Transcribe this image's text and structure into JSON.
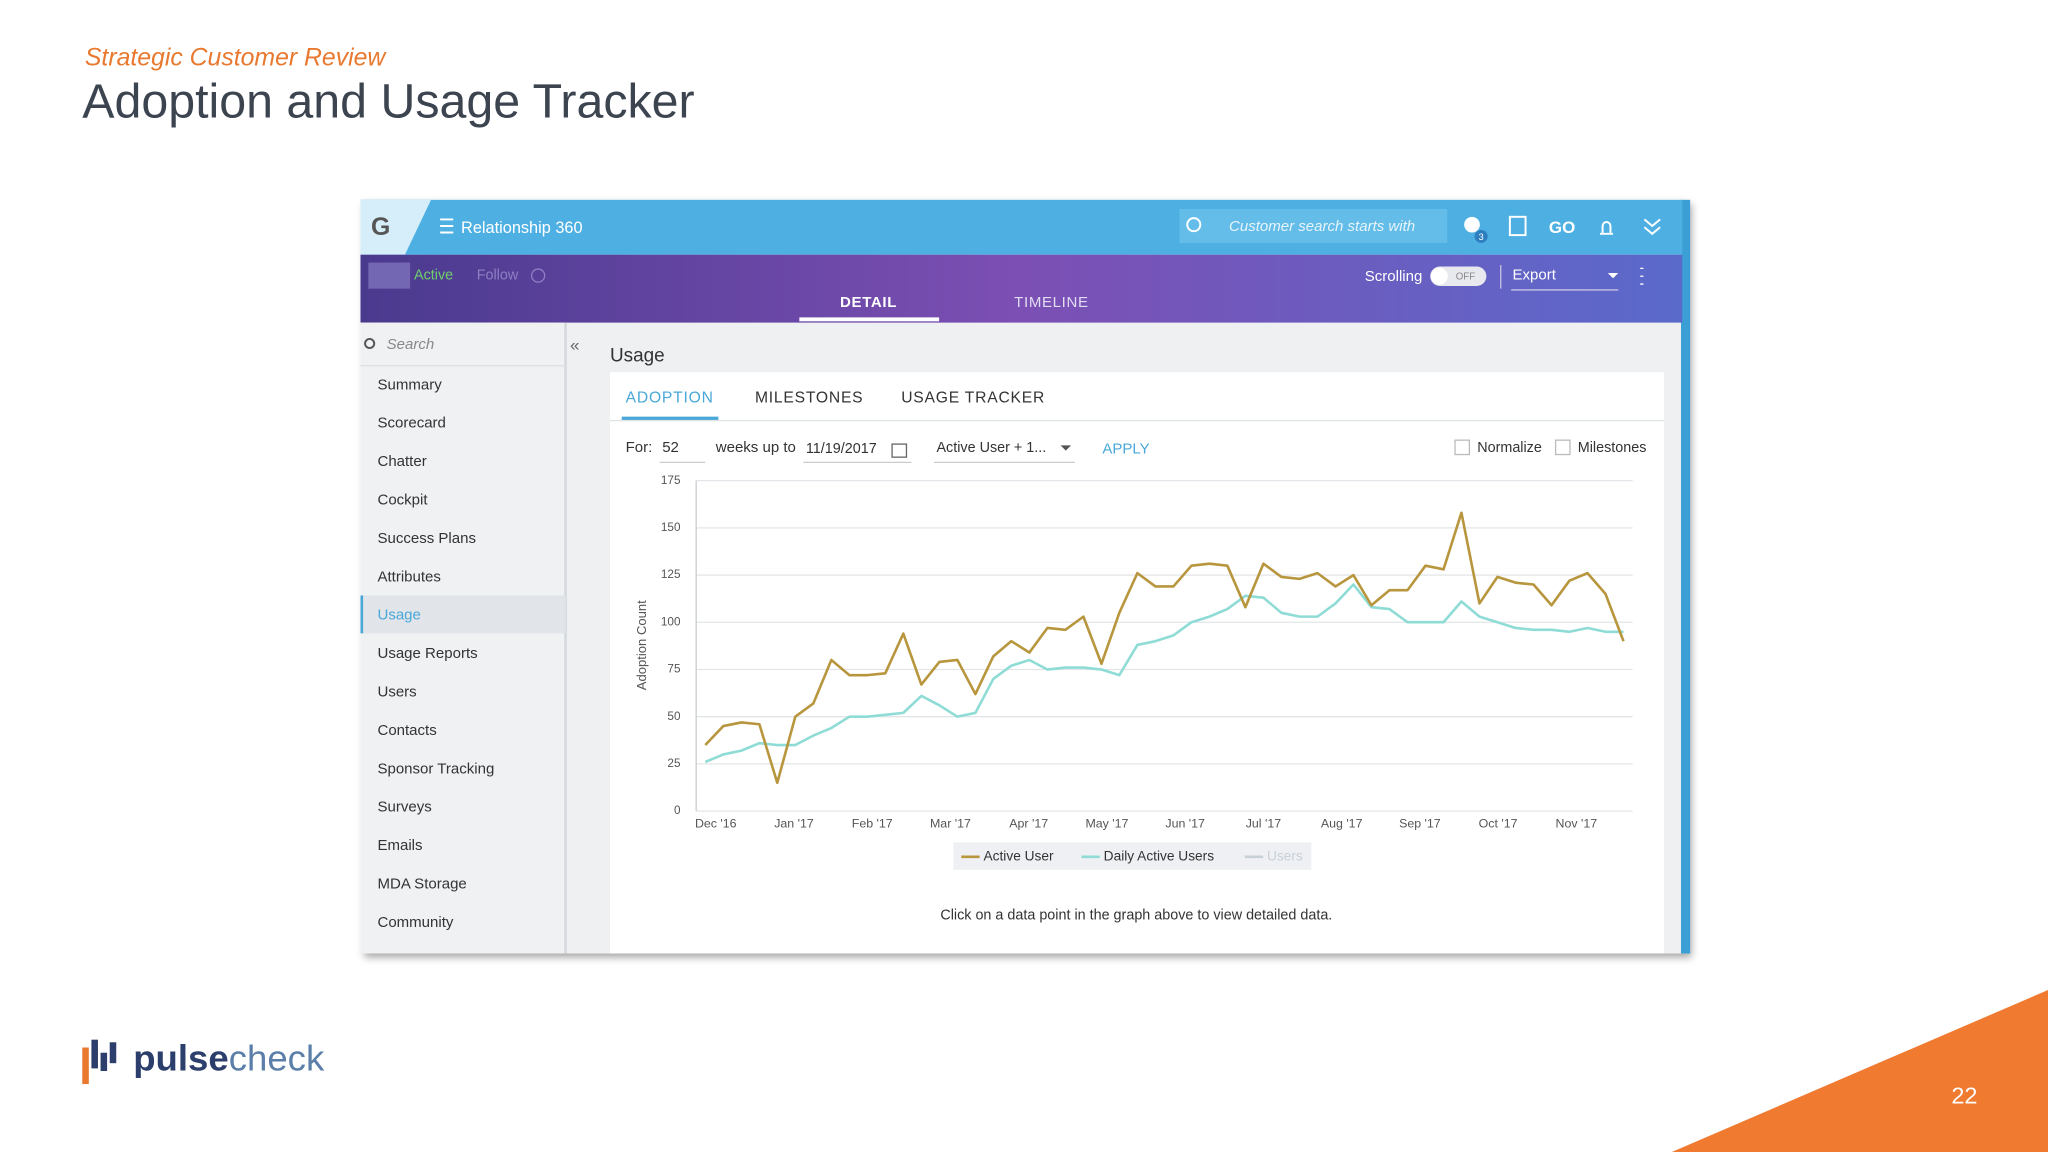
{
  "slide": {
    "kicker": "Strategic Customer Review",
    "title": "Adoption and Usage Tracker",
    "page_number": 22,
    "logo": {
      "part1": "pulse",
      "part2": "check"
    }
  },
  "app": {
    "brand": "G",
    "nav_title": "Relationship 360",
    "search_placeholder": "Customer search starts with",
    "badge": 3,
    "go": "GO",
    "status": "Active",
    "follow": "Follow",
    "scrolling": "Scrolling",
    "toggle": "OFF",
    "export": "Export",
    "tabs": [
      "DETAIL",
      "TIMELINE"
    ],
    "sidebar_search": "Search",
    "sidebar": [
      "Summary",
      "Scorecard",
      "Chatter",
      "Cockpit",
      "Success Plans",
      "Attributes",
      "Usage",
      "Usage Reports",
      "Users",
      "Contacts",
      "Sponsor Tracking",
      "Surveys",
      "Emails",
      "MDA Storage",
      "Community"
    ],
    "section": "Usage",
    "subtabs": [
      "ADOPTION",
      "MILESTONES",
      "USAGE TRACKER"
    ],
    "filters": {
      "for": "For:",
      "weeks": 52,
      "weeks_up_to": "weeks up to",
      "date": "11/19/2017",
      "measure": "Active User + 1...",
      "apply": "APPLY",
      "normalize": "Normalize",
      "milestones": "Milestones"
    },
    "footnote": "Click on a data point in the graph above to view detailed data."
  },
  "chart": {
    "type": "line",
    "y_label": "Adoption Count",
    "xticks": [
      "Dec '16",
      "Jan '17",
      "Feb '17",
      "Mar '17",
      "Apr '17",
      "May '17",
      "Jun '17",
      "Jul '17",
      "Aug '17",
      "Sep '17",
      "Oct '17",
      "Nov '17"
    ],
    "ylim": [
      0,
      175
    ],
    "yticks": [
      0,
      25,
      50,
      75,
      100,
      125,
      150,
      175
    ],
    "grid": true,
    "series": [
      {
        "name": "Active User",
        "color": "#b8963e",
        "values": [
          35,
          45,
          47,
          46,
          15,
          50,
          57,
          80,
          72,
          72,
          73,
          94,
          67,
          79,
          80,
          62,
          82,
          90,
          84,
          97,
          96,
          103,
          78,
          105,
          126,
          119,
          119,
          130,
          131,
          130,
          108,
          131,
          124,
          123,
          126,
          119,
          125,
          109,
          117,
          117,
          130,
          128,
          158,
          110,
          124,
          121,
          120,
          109,
          122,
          126,
          115,
          90
        ]
      },
      {
        "name": "Daily Active Users",
        "color": "#8fdcd6",
        "values": [
          26,
          30,
          32,
          36,
          35,
          35,
          40,
          44,
          50,
          50,
          51,
          52,
          61,
          56,
          50,
          52,
          70,
          77,
          80,
          75,
          76,
          76,
          75,
          72,
          88,
          90,
          93,
          100,
          103,
          107,
          114,
          113,
          105,
          103,
          103,
          110,
          120,
          108,
          107,
          100,
          100,
          100,
          111,
          103,
          100,
          97,
          96,
          96,
          95,
          97,
          95,
          95
        ]
      }
    ],
    "inactive_series": "Users"
  }
}
